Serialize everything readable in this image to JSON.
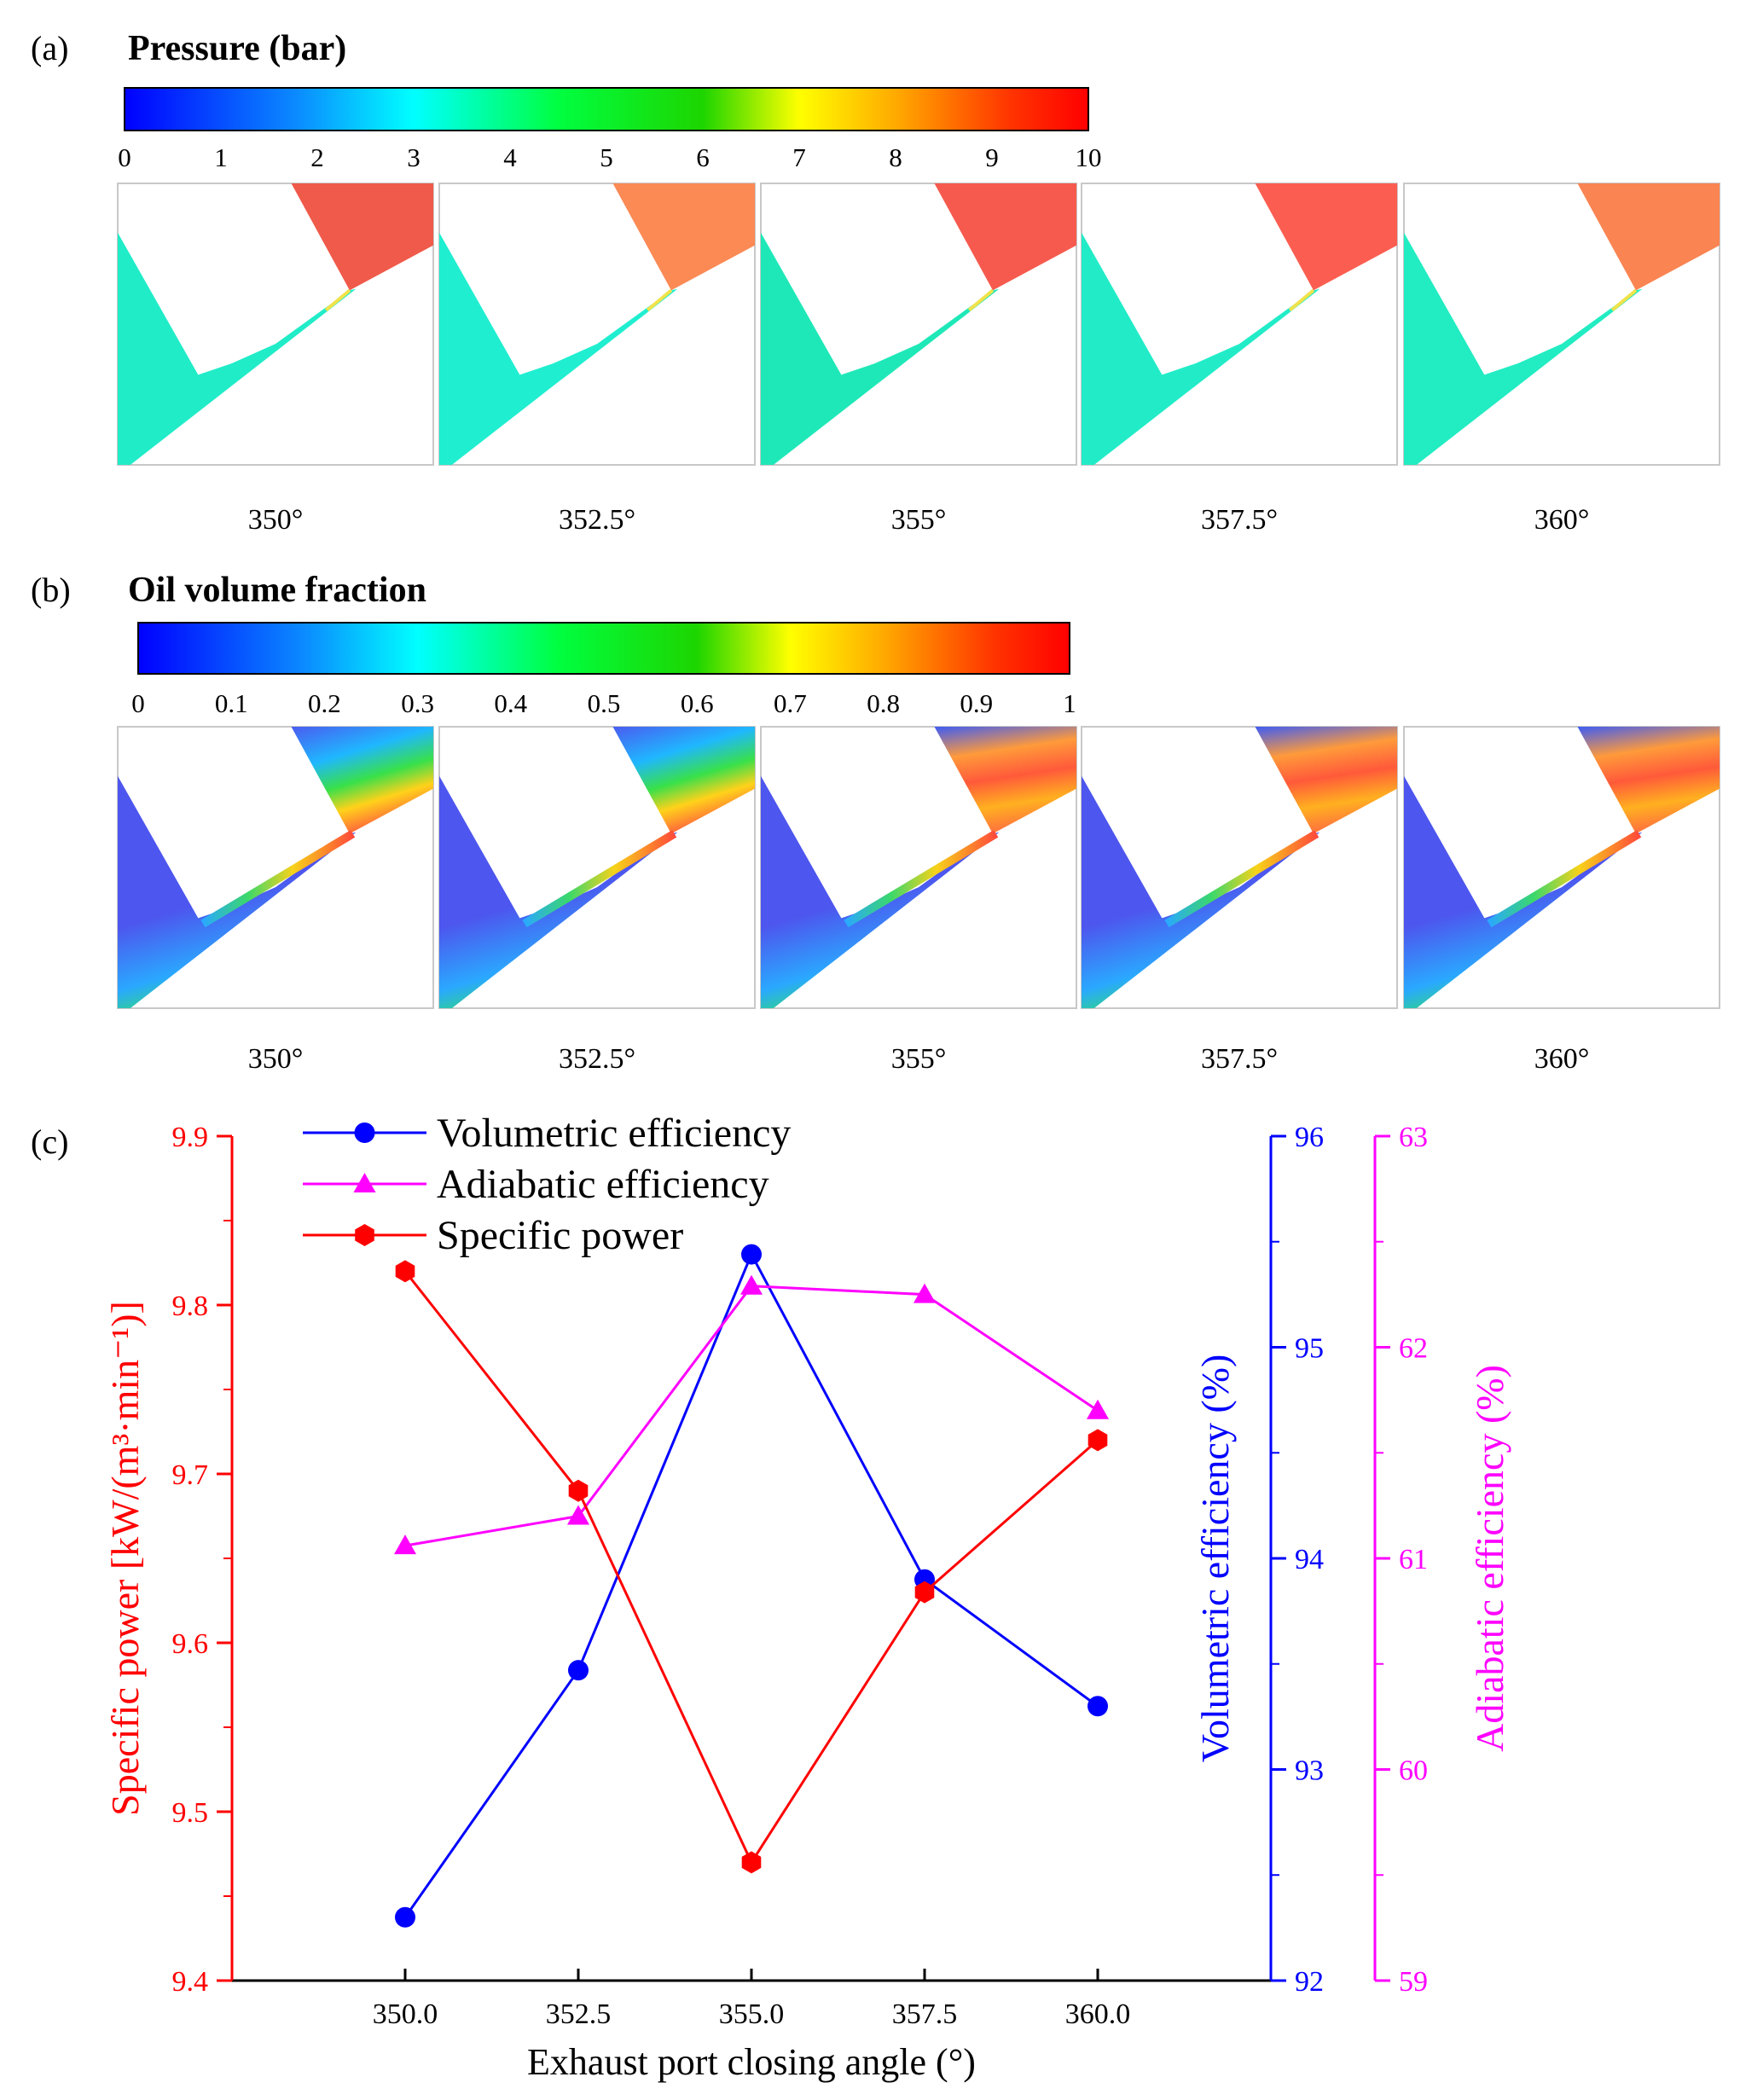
{
  "panel_a": {
    "label": "(a)",
    "title": "Pressure (bar)",
    "colorbar_ticks": [
      "0",
      "1",
      "2",
      "3",
      "4",
      "5",
      "6",
      "7",
      "8",
      "9",
      "10"
    ],
    "snapshots": [
      {
        "angle": "350°",
        "port_color": "#f05a4a",
        "groove_color": "#20ecc8"
      },
      {
        "angle": "352.5°",
        "port_color": "#fb8a55",
        "groove_color": "#20eed0"
      },
      {
        "angle": "355°",
        "port_color": "#f65a4e",
        "groove_color": "#1fe8b8"
      },
      {
        "angle": "357.5°",
        "port_color": "#fb5e50",
        "groove_color": "#22ecc8"
      },
      {
        "angle": "360°",
        "port_color": "#fa8452",
        "groove_color": "#22ecc2"
      }
    ]
  },
  "panel_b": {
    "label": "(b)",
    "title": "Oil volume fraction",
    "colorbar_ticks": [
      "0",
      "0.1",
      "0.2",
      "0.3",
      "0.4",
      "0.5",
      "0.6",
      "0.7",
      "0.8",
      "0.9",
      "1"
    ],
    "snapshots": [
      {
        "angle": "350°"
      },
      {
        "angle": "352.5°"
      },
      {
        "angle": "355°"
      },
      {
        "angle": "357.5°"
      },
      {
        "angle": "360°"
      }
    ]
  },
  "panel_c": {
    "label": "(c)"
  },
  "colors": {
    "red": "#ff0000",
    "blue": "#0000ff",
    "magenta": "#ff00ff"
  },
  "chart_data": {
    "type": "line",
    "xlabel": "Exhaust port closing angle  (°)",
    "x": [
      350.0,
      352.5,
      355.0,
      357.5,
      360.0
    ],
    "xticks": [
      "350.0",
      "352.5",
      "355.0",
      "357.5",
      "360.0"
    ],
    "xlim": [
      347.5,
      362.5
    ],
    "series": [
      {
        "name": "Volumetric  efficiency",
        "axis": "volumetric",
        "marker": "circle",
        "color": "#0000ff",
        "values": [
          92.3,
          93.47,
          95.44,
          93.9,
          93.3
        ]
      },
      {
        "name": "Adiabatic efficiency",
        "axis": "adiabatic",
        "marker": "triangle",
        "color": "#ff00ff",
        "values": [
          61.06,
          61.2,
          62.29,
          62.25,
          61.7
        ]
      },
      {
        "name": "Specific power",
        "axis": "specific",
        "marker": "hexagon",
        "color": "#ff0000",
        "values": [
          9.82,
          9.69,
          9.47,
          9.63,
          9.72
        ]
      }
    ],
    "axes": {
      "specific": {
        "label": "Specific power [kW/(m³·min⁻¹)]",
        "ylim": [
          9.4,
          9.9
        ],
        "ticks": [
          "9.4",
          "9.5",
          "9.6",
          "9.7",
          "9.8",
          "9.9"
        ],
        "side": "left"
      },
      "volumetric": {
        "label": "Volumetric  efficiency (%)",
        "ylim": [
          92,
          96
        ],
        "ticks": [
          "92",
          "93",
          "94",
          "95",
          "96"
        ],
        "side": "right"
      },
      "adiabatic": {
        "label": "Adiabatic efficiency (%)",
        "ylim": [
          59,
          63
        ],
        "ticks": [
          "59",
          "60",
          "61",
          "62",
          "63"
        ],
        "side": "right-outer"
      }
    },
    "legend": "top-left"
  }
}
